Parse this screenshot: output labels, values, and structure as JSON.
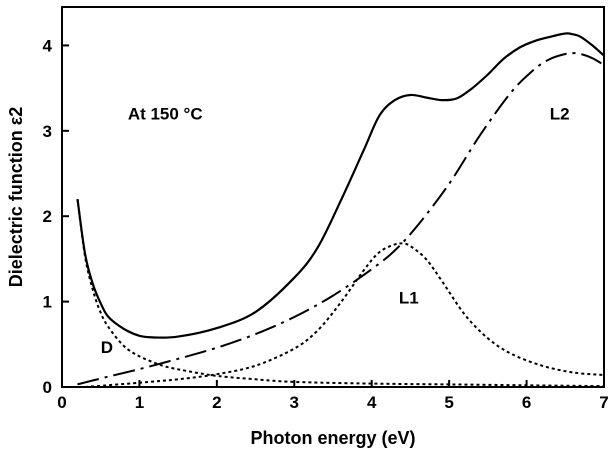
{
  "chart_data": {
    "type": "line",
    "title": "",
    "xlabel": "Photon energy (eV)",
    "ylabel": "Dielectric function ε2",
    "xlim": [
      0,
      7
    ],
    "ylim": [
      0,
      4.45
    ],
    "xticks": [
      "0",
      "1",
      "2",
      "3",
      "4",
      "5",
      "6",
      "7"
    ],
    "yticks": [
      "0",
      "1",
      "2",
      "3",
      "4"
    ],
    "grid": false,
    "legend": "none",
    "annotations": [
      {
        "text": "At 150 °C",
        "x": 0.85,
        "y": 3.2
      },
      {
        "text": "L2",
        "x": 6.3,
        "y": 3.2
      },
      {
        "text": "L1",
        "x": 4.35,
        "y": 1.05
      },
      {
        "text": "D",
        "x": 0.5,
        "y": 0.47
      }
    ],
    "series": [
      {
        "style": "solid",
        "color": "#000000",
        "x": [
          0.2,
          0.3,
          0.4,
          0.5,
          0.6,
          0.8,
          1.0,
          1.2,
          1.5,
          2.0,
          2.5,
          3.0,
          3.3,
          3.6,
          3.9,
          4.1,
          4.3,
          4.5,
          4.7,
          4.9,
          5.1,
          5.3,
          5.5,
          5.7,
          5.9,
          6.1,
          6.3,
          6.5,
          6.6,
          6.7,
          6.85,
          7.0
        ],
        "y": [
          2.2,
          1.55,
          1.2,
          0.98,
          0.82,
          0.68,
          0.6,
          0.58,
          0.59,
          0.69,
          0.88,
          1.28,
          1.63,
          2.18,
          2.78,
          3.18,
          3.36,
          3.42,
          3.39,
          3.36,
          3.38,
          3.5,
          3.66,
          3.84,
          3.97,
          4.05,
          4.1,
          4.14,
          4.13,
          4.1,
          4.0,
          3.88
        ]
      },
      {
        "style": "dash-dot",
        "color": "#000000",
        "x": [
          0.2,
          0.5,
          1.0,
          1.5,
          2.0,
          2.5,
          3.0,
          3.5,
          4.0,
          4.3,
          4.6,
          5.0,
          5.4,
          5.8,
          6.1,
          6.3,
          6.5,
          6.6,
          6.7,
          6.85,
          7.0
        ],
        "y": [
          0.03,
          0.1,
          0.21,
          0.33,
          0.46,
          0.62,
          0.82,
          1.07,
          1.38,
          1.6,
          1.9,
          2.38,
          2.95,
          3.45,
          3.72,
          3.84,
          3.9,
          3.91,
          3.9,
          3.85,
          3.77
        ]
      },
      {
        "style": "dotted",
        "color": "#000000",
        "x": [
          0.2,
          0.3,
          0.4,
          0.5,
          0.6,
          0.8,
          1.0,
          1.3,
          1.6,
          2.0,
          2.5,
          3.0,
          4.0,
          5.0,
          6.0,
          7.0
        ],
        "y": [
          2.2,
          1.52,
          1.13,
          0.87,
          0.7,
          0.48,
          0.36,
          0.25,
          0.19,
          0.13,
          0.09,
          0.06,
          0.04,
          0.03,
          0.02,
          0.01
        ]
      },
      {
        "style": "dotted",
        "color": "#000000",
        "x": [
          0.3,
          1.0,
          1.5,
          2.0,
          2.5,
          3.0,
          3.3,
          3.6,
          3.9,
          4.1,
          4.3,
          4.4,
          4.5,
          4.7,
          4.9,
          5.2,
          5.5,
          5.8,
          6.2,
          6.6,
          7.0
        ],
        "y": [
          0.0,
          0.05,
          0.09,
          0.15,
          0.25,
          0.45,
          0.66,
          0.99,
          1.37,
          1.58,
          1.67,
          1.68,
          1.65,
          1.5,
          1.25,
          0.85,
          0.57,
          0.39,
          0.25,
          0.17,
          0.14
        ]
      }
    ]
  }
}
